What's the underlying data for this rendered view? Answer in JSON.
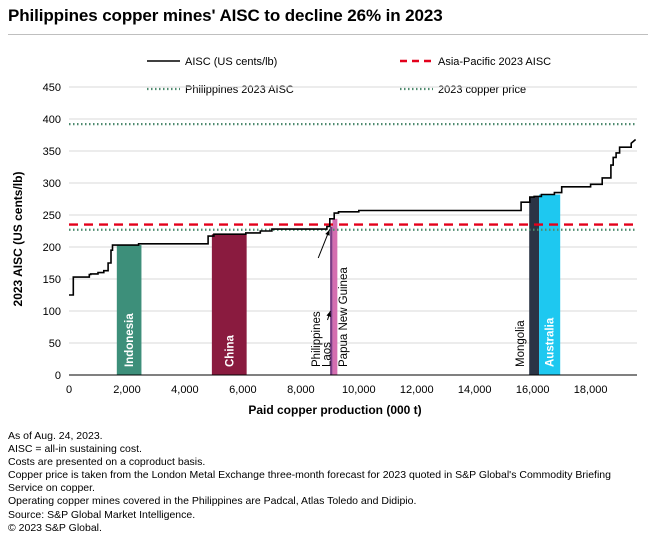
{
  "title": "Philippines copper mines' AISC to decline 26% in 2023",
  "chart_data": {
    "type": "line",
    "title": "Philippines copper mines' AISC to decline 26% in 2023",
    "xlabel": "Paid copper production (000 t)",
    "ylabel": "2023 AISC (US cents/lb)",
    "xlim": [
      0,
      19600
    ],
    "ylim": [
      0,
      450
    ],
    "xticks": [
      0,
      2000,
      4000,
      6000,
      8000,
      10000,
      12000,
      14000,
      16000,
      18000
    ],
    "xtick_labels": [
      "0",
      "2,000",
      "4,000",
      "6,000",
      "8,000",
      "10,000",
      "12,000",
      "14,000",
      "16,000",
      "18,000"
    ],
    "yticks": [
      0,
      50,
      100,
      150,
      200,
      250,
      300,
      350,
      400,
      450
    ],
    "legend": [
      {
        "label": "AISC (US cents/lb)",
        "style": "solid",
        "color": "#000000"
      },
      {
        "label": "Asia-Pacific 2023 AISC",
        "style": "dashed",
        "color": "#e3001b"
      },
      {
        "label": "Philippines 2023 AISC",
        "style": "dotted",
        "color": "#4d8a6e"
      },
      {
        "label": "2023 copper price",
        "style": "dotted",
        "color": "#4d8a6e"
      }
    ],
    "reference_lines": [
      {
        "name": "Asia-Pacific 2023 AISC",
        "y": 235,
        "color": "#e3001b"
      },
      {
        "name": "Philippines 2023 AISC",
        "y": 227,
        "color": "#4d8a6e"
      },
      {
        "name": "2023 copper price",
        "y": 392,
        "color": "#4d8a6e"
      }
    ],
    "aisc_curve": {
      "x": [
        0,
        150,
        150,
        700,
        700,
        750,
        750,
        1000,
        1000,
        1200,
        1200,
        1350,
        1350,
        1450,
        1450,
        1500,
        1500,
        2400,
        2400,
        4800,
        4800,
        5000,
        5000,
        6100,
        6100,
        6600,
        6600,
        7000,
        7000,
        8900,
        8900,
        9000,
        9000,
        9150,
        9150,
        9300,
        9300,
        10000,
        10000,
        15600,
        15600,
        15900,
        15900,
        16050,
        16050,
        16300,
        16300,
        16750,
        16750,
        17000,
        17000,
        18000,
        18000,
        18400,
        18400,
        18700,
        18700,
        18780,
        18780,
        18880,
        18880,
        19000,
        19000,
        19400,
        19400,
        19550
      ],
      "y": [
        125,
        125,
        153,
        153,
        157,
        157,
        158,
        158,
        160,
        160,
        163,
        163,
        175,
        175,
        195,
        195,
        203,
        203,
        205,
        205,
        217,
        217,
        220,
        220,
        222,
        222,
        225,
        225,
        228,
        228,
        232,
        232,
        244,
        244,
        253,
        253,
        255,
        255,
        257,
        257,
        270,
        270,
        278,
        278,
        279,
        279,
        282,
        282,
        285,
        285,
        294,
        294,
        298,
        298,
        308,
        308,
        328,
        328,
        340,
        340,
        347,
        347,
        356,
        356,
        362,
        368
      ]
    },
    "highlights": [
      {
        "name": "Indonesia",
        "x0": 1650,
        "x1": 2500,
        "value": 203,
        "color": "#3d8f7a"
      },
      {
        "name": "China",
        "x0": 4930,
        "x1": 6130,
        "value": 220,
        "color": "#8a1b3f"
      },
      {
        "name": "Laos",
        "x0": 9010,
        "x1": 9090,
        "value": 232,
        "color": "#7a3e86"
      },
      {
        "name": "Papua New Guinea",
        "x0": 9090,
        "x1": 9260,
        "value": 244,
        "color": "#d46eb0"
      },
      {
        "name": "Mongolia",
        "x0": 15880,
        "x1": 16220,
        "value": 278,
        "color": "#2b3445"
      },
      {
        "name": "Australia",
        "x0": 16220,
        "x1": 16950,
        "value": 282,
        "color": "#1ec8f0"
      }
    ],
    "annotations": [
      {
        "text": "Indonesia",
        "x": 2075,
        "color": "#ffffff"
      },
      {
        "text": "China",
        "x": 5530,
        "color": "#ffffff"
      },
      {
        "text": "Philippines",
        "x": 8520,
        "color": "#000000"
      },
      {
        "text": "Laos",
        "x": 8880,
        "color": "#000000"
      },
      {
        "text": "Papua New Guinea",
        "x": 9460,
        "color": "#000000"
      },
      {
        "text": "Mongolia",
        "x": 15560,
        "color": "#000000"
      },
      {
        "text": "Australia",
        "x": 16585,
        "color": "#ffffff"
      }
    ]
  },
  "notes": [
    "As of Aug. 24, 2023.",
    "AISC = all-in sustaining cost.",
    "Costs are presented on a coproduct basis.",
    "Copper price is taken from the London Metal Exchange three-month forecast for 2023 quoted in S&P Global's Commodity Briefing Service on copper.",
    "Operating copper mines covered in the Philippines are Padcal, Atlas Toledo and Didipio.",
    "Source: S&P Global Market Intelligence.",
    "© 2023 S&P Global."
  ]
}
